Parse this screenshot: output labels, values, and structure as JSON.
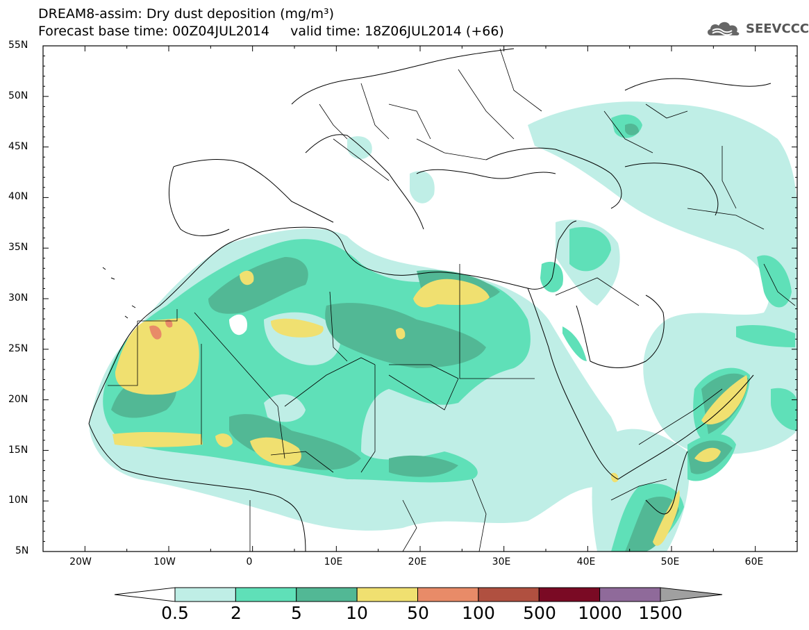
{
  "title": {
    "line1": "DREAM8-assim: Dry dust deposition (mg/m³)",
    "line2": "Forecast base time: 00Z04JUL2014     valid time: 18Z06JUL2014 (+66)"
  },
  "logo": {
    "text": "SEEVCCC",
    "icon": "cloud-icon"
  },
  "map": {
    "lat_labels": [
      "55N",
      "50N",
      "45N",
      "40N",
      "35N",
      "30N",
      "25N",
      "20N",
      "15N",
      "10N",
      "5N"
    ],
    "lon_labels": [
      "20W",
      "10W",
      "0",
      "10E",
      "20E",
      "30E",
      "40E",
      "50E",
      "60E"
    ],
    "extent": {
      "lon_min": -25,
      "lon_max": 65,
      "lat_min": 5,
      "lat_max": 55
    }
  },
  "colorbar": {
    "labels": [
      "0.5",
      "2",
      "5",
      "10",
      "50",
      "100",
      "500",
      "1000",
      "1500"
    ],
    "colors": [
      "#bfeee6",
      "#5fe0b8",
      "#52b895",
      "#f0e070",
      "#e88b68",
      "#b05040",
      "#7a0a24",
      "#8f6a9a"
    ],
    "under_color": "#ffffff",
    "over_color": "#a0a0a0"
  }
}
